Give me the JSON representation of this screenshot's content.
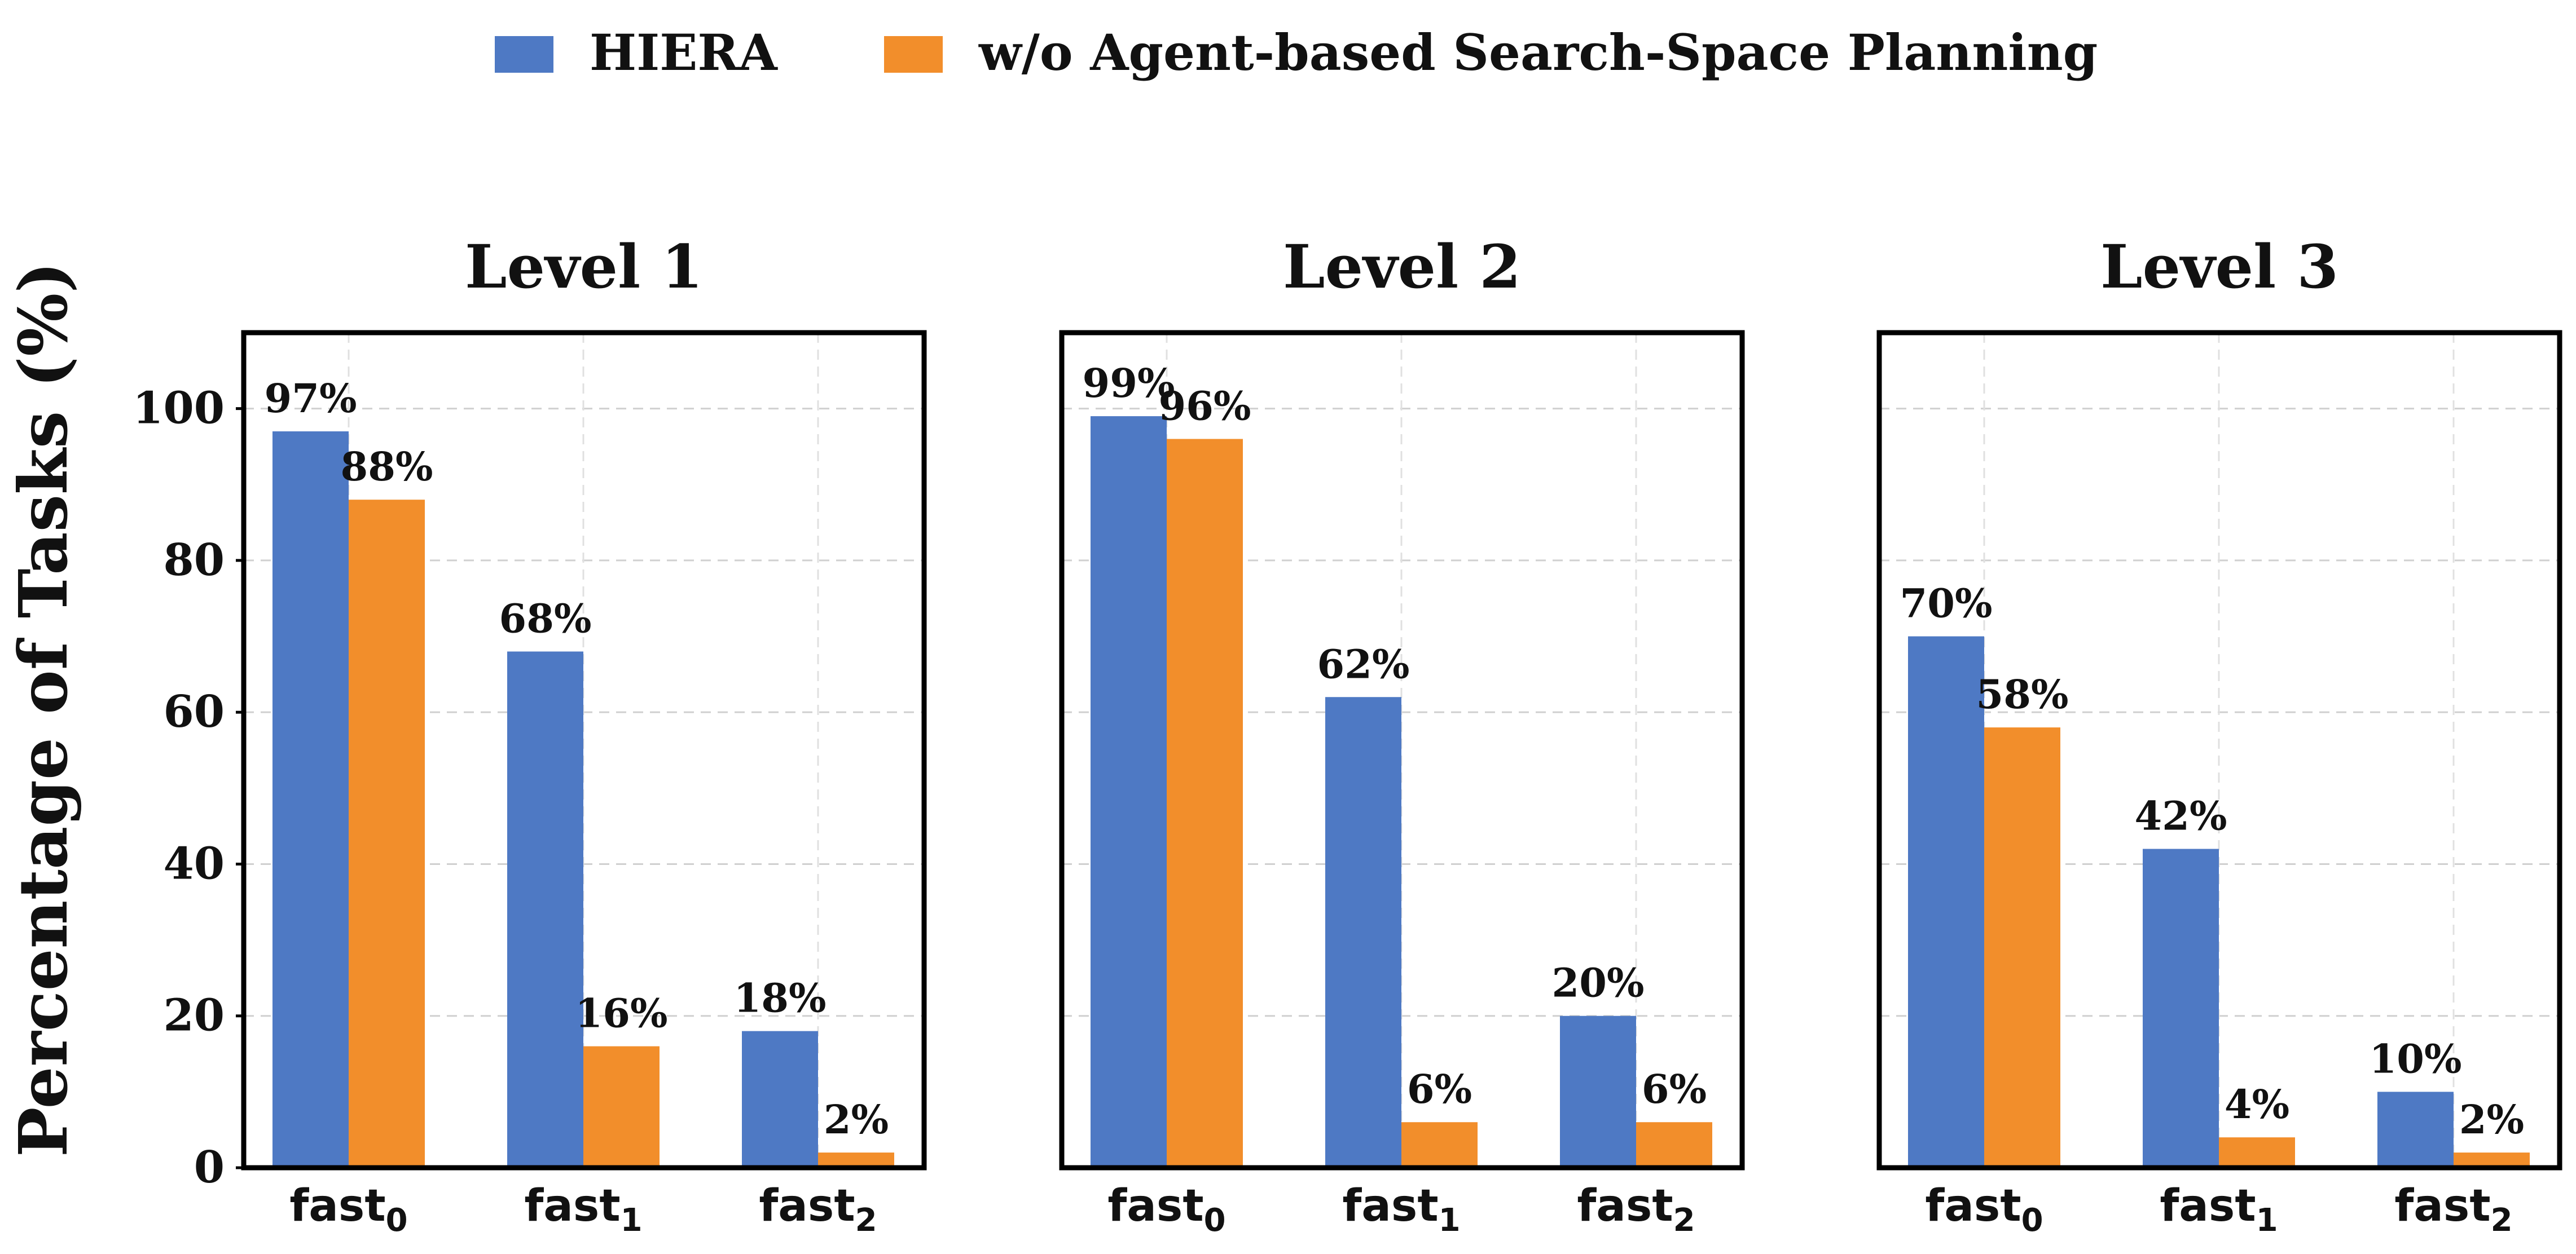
{
  "legend": {
    "placement": "top-center",
    "items": [
      {
        "label": "HIERA",
        "color": "#4e79c4"
      },
      {
        "label": "w/o Agent-based Search-Space Planning",
        "color": "#f28e2b"
      }
    ]
  },
  "ylabel": "Percentage of Tasks (%)",
  "chart_data": [
    {
      "type": "bar",
      "title": "Level 1",
      "categories": [
        {
          "base": "fast",
          "sub": "0"
        },
        {
          "base": "fast",
          "sub": "1"
        },
        {
          "base": "fast",
          "sub": "2"
        }
      ],
      "series": [
        {
          "name": "HIERA",
          "values": [
            97,
            68,
            18
          ],
          "labels": [
            "97%",
            "68%",
            "18%"
          ]
        },
        {
          "name": "w/o Agent-based Search-Space Planning",
          "values": [
            88,
            16,
            2
          ],
          "labels": [
            "88%",
            "16%",
            "2%"
          ]
        }
      ],
      "ylim": [
        0,
        110
      ],
      "yticks": [
        "0",
        "20",
        "40",
        "60",
        "80",
        "100"
      ],
      "grid": true
    },
    {
      "type": "bar",
      "title": "Level 2",
      "categories": [
        {
          "base": "fast",
          "sub": "0"
        },
        {
          "base": "fast",
          "sub": "1"
        },
        {
          "base": "fast",
          "sub": "2"
        }
      ],
      "series": [
        {
          "name": "HIERA",
          "values": [
            99,
            62,
            20
          ],
          "labels": [
            "99%",
            "62%",
            "20%"
          ]
        },
        {
          "name": "w/o Agent-based Search-Space Planning",
          "values": [
            96,
            6,
            6
          ],
          "labels": [
            "96%",
            "6%",
            "6%"
          ]
        }
      ],
      "ylim": [
        0,
        110
      ],
      "yticks": [],
      "grid": true
    },
    {
      "type": "bar",
      "title": "Level 3",
      "categories": [
        {
          "base": "fast",
          "sub": "0"
        },
        {
          "base": "fast",
          "sub": "1"
        },
        {
          "base": "fast",
          "sub": "2"
        }
      ],
      "series": [
        {
          "name": "HIERA",
          "values": [
            70,
            42,
            10
          ],
          "labels": [
            "70%",
            "42%",
            "10%"
          ]
        },
        {
          "name": "w/o Agent-based Search-Space Planning",
          "values": [
            58,
            4,
            2
          ],
          "labels": [
            "58%",
            "4%",
            "2%"
          ]
        }
      ],
      "ylim": [
        0,
        110
      ],
      "yticks": [],
      "grid": true
    }
  ]
}
